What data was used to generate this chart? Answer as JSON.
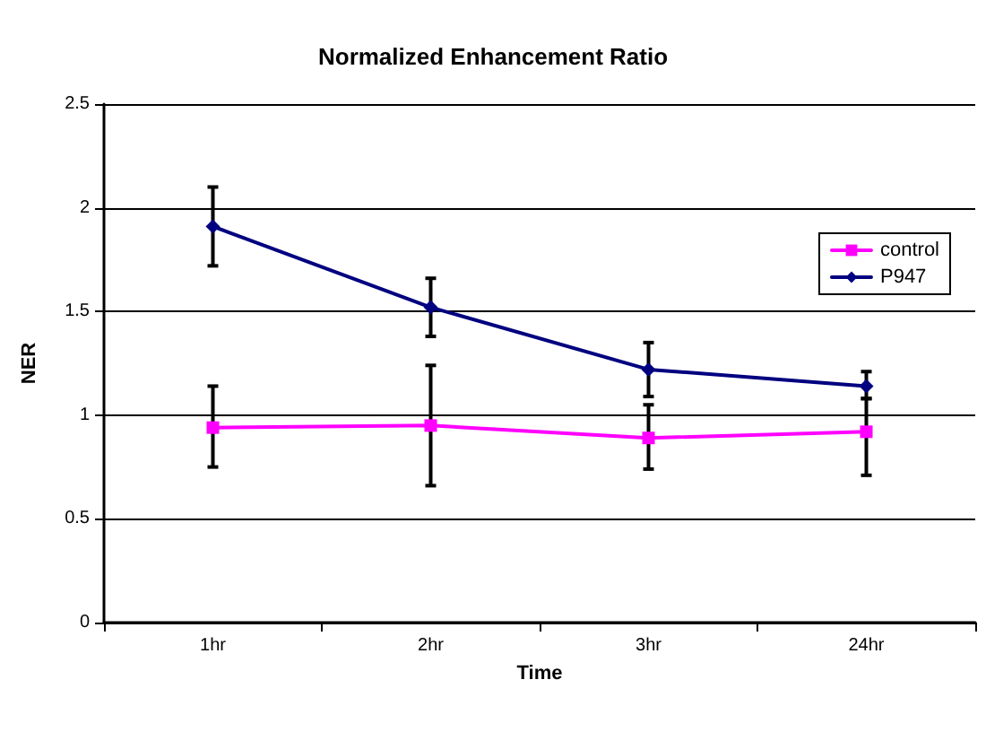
{
  "chart_data": {
    "type": "line",
    "title": "Normalized Enhancement Ratio",
    "xlabel": "Time",
    "ylabel": "NER",
    "categories": [
      "1hr",
      "2hr",
      "3hr",
      "24hr"
    ],
    "series": [
      {
        "name": "control",
        "color": "#ff00ff",
        "marker": "square",
        "values": [
          0.94,
          0.95,
          0.89,
          0.92
        ],
        "errors": [
          [
            0.75,
            1.14
          ],
          [
            0.66,
            1.24
          ],
          [
            0.74,
            1.05
          ],
          [
            0.71,
            1.08
          ]
        ]
      },
      {
        "name": "P947",
        "color": "#000080",
        "marker": "diamond",
        "values": [
          1.91,
          1.52,
          1.22,
          1.14
        ],
        "errors": [
          [
            1.72,
            2.1
          ],
          [
            1.38,
            1.66
          ],
          [
            1.09,
            1.35
          ],
          [
            1.08,
            1.21
          ]
        ]
      }
    ],
    "ylim": [
      0,
      2.5
    ],
    "yticks": [
      0,
      0.5,
      1,
      1.5,
      2,
      2.5
    ],
    "grid": "y",
    "legend": "right"
  }
}
